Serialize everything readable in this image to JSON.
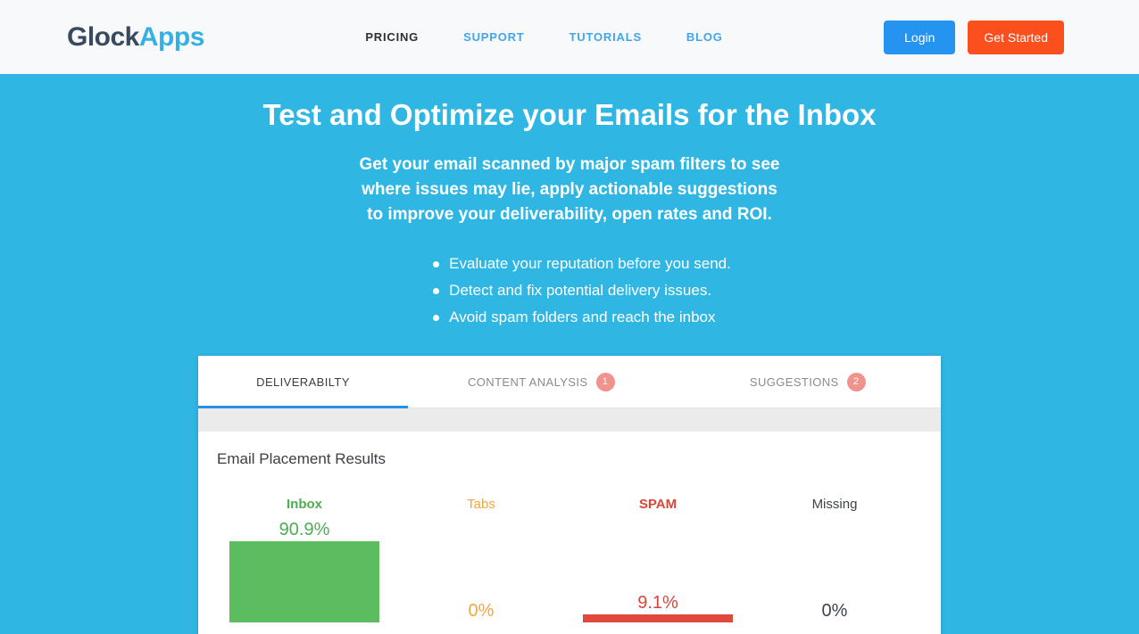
{
  "brand": {
    "name_part1": "Glock",
    "name_part2": "Apps"
  },
  "header": {
    "nav": [
      {
        "id": "pricing",
        "label": "PRICING",
        "color": "#2f2f2f"
      },
      {
        "id": "support",
        "label": "SUPPORT",
        "color": "#44a5ea"
      },
      {
        "id": "tutorials",
        "label": "TUTORIALS",
        "color": "#44a5ea"
      },
      {
        "id": "blog",
        "label": "BLOG",
        "color": "#44a5ea"
      }
    ],
    "login_label": "Login",
    "get_started_label": "Get Started"
  },
  "hero": {
    "title": "Test and Optimize your Emails for the Inbox",
    "subtitle": "Get your email scanned by major spam filters to see\nwhere issues may lie, apply actionable suggestions\nto improve your deliverability, open rates and ROI.",
    "bullets": [
      "Evaluate your reputation before you send.",
      "Detect and fix potential delivery issues.",
      "Avoid spam folders and reach the inbox"
    ]
  },
  "report_card": {
    "tabs": [
      {
        "id": "deliverability",
        "label": "DELIVERABILTY",
        "active": true
      },
      {
        "id": "content-analysis",
        "label": "CONTENT ANALYSIS",
        "badge": "1"
      },
      {
        "id": "suggestions",
        "label": "SUGGESTIONS",
        "badge": "2"
      }
    ],
    "section_title": "Email Placement Results",
    "placements": [
      {
        "id": "inbox",
        "label": "Inbox",
        "value": "90.9%",
        "percent": 90.9,
        "label_color": "#4cae52",
        "value_color": "#4cae52",
        "bar_color": "#5cbd60",
        "bold": true
      },
      {
        "id": "tabs",
        "label": "Tabs",
        "value": "0%",
        "percent": 0,
        "label_color": "#f5a53a",
        "value_color": "#f5a53a",
        "bar_color": "#f5a53a",
        "bold": false
      },
      {
        "id": "spam",
        "label": "SPAM",
        "value": "9.1%",
        "percent": 9.1,
        "label_color": "#dc4639",
        "value_color": "#dc4639",
        "bar_color": "#e04a3d",
        "bold": true
      },
      {
        "id": "missing",
        "label": "Missing",
        "value": "0%",
        "percent": 0,
        "label_color": "#3d4349",
        "value_color": "#3a434e",
        "bar_color": "#3a434e",
        "bold": false
      }
    ]
  },
  "colors": {
    "hero_bg": "#30b6e3",
    "header_bg": "#f8f9fa",
    "login_bg": "#2594f0",
    "get_started_bg": "#fb4f1d",
    "tab_underline": "#2590ea",
    "badge_bg": "#f2928d"
  }
}
